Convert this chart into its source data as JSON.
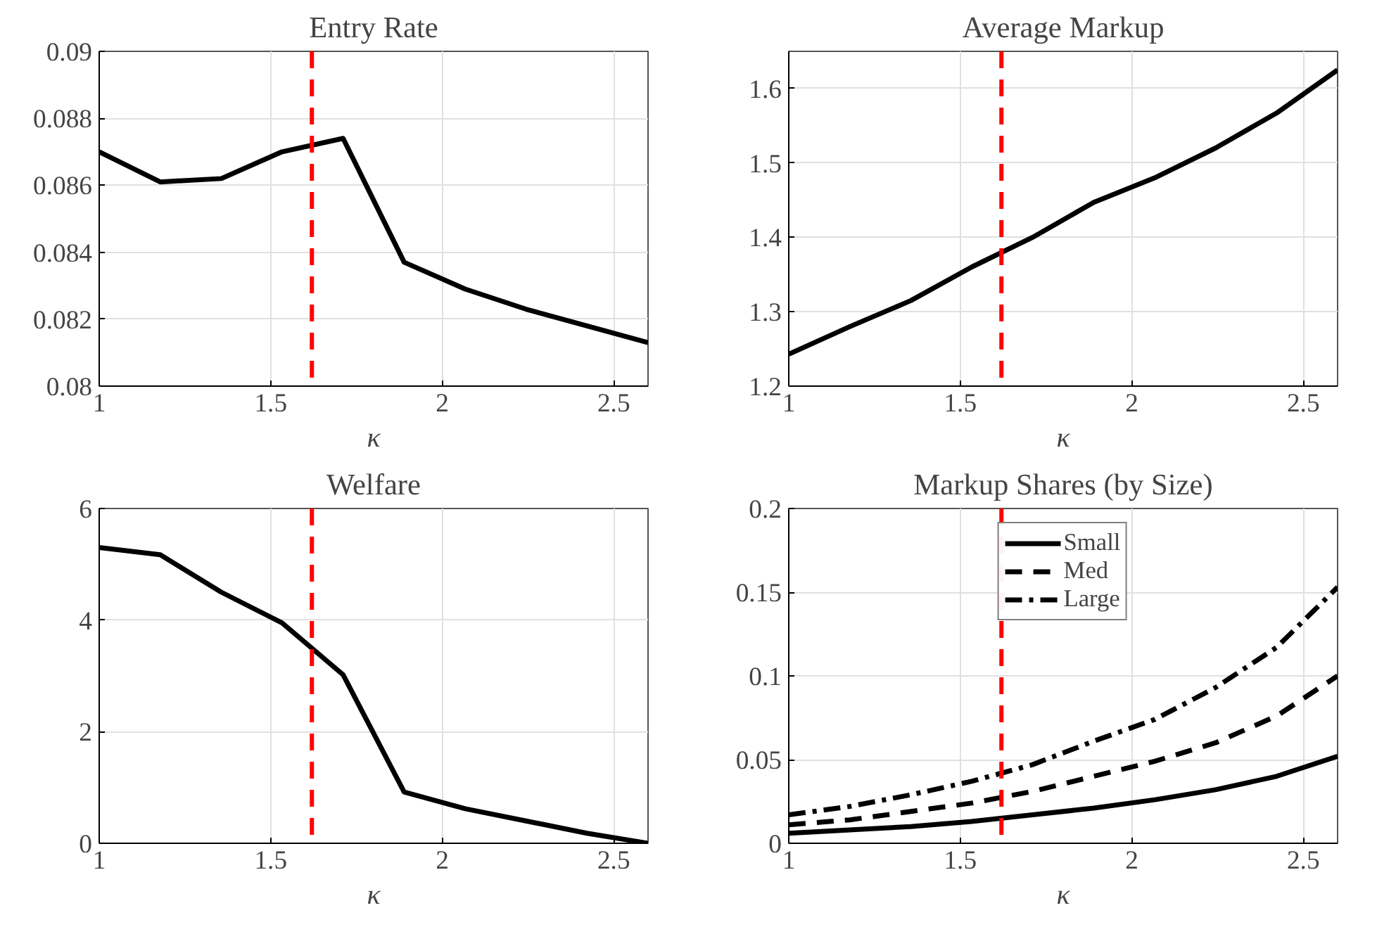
{
  "chart_data": [
    {
      "type": "line",
      "title": "Entry Rate",
      "xlabel": "κ",
      "x": [
        1,
        1.178,
        1.356,
        1.533,
        1.711,
        1.889,
        2.067,
        2.244,
        2.422,
        2.6
      ],
      "xlim": [
        1,
        2.6
      ],
      "xticks": [
        1,
        1.5,
        2,
        2.5
      ],
      "ylim": [
        0.08,
        0.09
      ],
      "yticks": [
        0.08,
        0.082,
        0.084,
        0.086,
        0.088,
        0.09
      ],
      "grid": true,
      "legend": false,
      "series": [
        {
          "color": "#000000",
          "line_style": "solid",
          "values": [
            0.087,
            0.0861,
            0.0862,
            0.087,
            0.0874,
            0.0837,
            0.0829,
            0.0823,
            0.0818,
            0.0813
          ]
        }
      ],
      "ref_lines": [
        {
          "axis": "x",
          "value": 1.62,
          "color": "#ff0000",
          "line_style": "dashed"
        }
      ]
    },
    {
      "type": "line",
      "title": "Average Markup",
      "xlabel": "κ",
      "x": [
        1,
        1.178,
        1.356,
        1.533,
        1.711,
        1.889,
        2.067,
        2.244,
        2.422,
        2.6
      ],
      "xlim": [
        1,
        2.6
      ],
      "xticks": [
        1,
        1.5,
        2,
        2.5
      ],
      "ylim": [
        1.2,
        1.65
      ],
      "yticks": [
        1.2,
        1.3,
        1.4,
        1.5,
        1.6
      ],
      "grid": true,
      "legend": false,
      "series": [
        {
          "color": "#000000",
          "line_style": "solid",
          "values": [
            1.243,
            1.28,
            1.315,
            1.36,
            1.4,
            1.447,
            1.48,
            1.52,
            1.567,
            1.625
          ]
        }
      ],
      "ref_lines": [
        {
          "axis": "x",
          "value": 1.62,
          "color": "#ff0000",
          "line_style": "dashed"
        }
      ]
    },
    {
      "type": "line",
      "title": "Welfare",
      "xlabel": "κ",
      "x": [
        1,
        1.178,
        1.356,
        1.533,
        1.711,
        1.889,
        2.067,
        2.244,
        2.422,
        2.6
      ],
      "xlim": [
        1,
        2.6
      ],
      "xticks": [
        1,
        1.5,
        2,
        2.5
      ],
      "ylim": [
        0,
        6
      ],
      "yticks": [
        0,
        2,
        4,
        6
      ],
      "grid": true,
      "legend": false,
      "series": [
        {
          "color": "#000000",
          "line_style": "solid",
          "values": [
            5.3,
            5.17,
            4.5,
            3.95,
            3.02,
            0.92,
            0.62,
            0.4,
            0.18,
            0.0
          ]
        }
      ],
      "ref_lines": [
        {
          "axis": "x",
          "value": 1.62,
          "color": "#ff0000",
          "line_style": "dashed"
        }
      ]
    },
    {
      "type": "line",
      "title": "Markup Shares (by Size)",
      "xlabel": "κ",
      "x": [
        1,
        1.178,
        1.356,
        1.533,
        1.711,
        1.889,
        2.067,
        2.244,
        2.422,
        2.6
      ],
      "xlim": [
        1,
        2.6
      ],
      "xticks": [
        1,
        1.5,
        2,
        2.5
      ],
      "ylim": [
        0,
        0.2
      ],
      "yticks": [
        0,
        0.05,
        0.1,
        0.15,
        0.2
      ],
      "grid": true,
      "legend": "top",
      "series": [
        {
          "name": "Small",
          "color": "#000000",
          "line_style": "solid",
          "values": [
            0.006,
            0.008,
            0.01,
            0.013,
            0.017,
            0.021,
            0.026,
            0.032,
            0.04,
            0.052
          ]
        },
        {
          "name": "Med",
          "color": "#000000",
          "line_style": "dashed",
          "values": [
            0.011,
            0.014,
            0.019,
            0.024,
            0.031,
            0.04,
            0.049,
            0.06,
            0.076,
            0.1
          ]
        },
        {
          "name": "Large",
          "color": "#000000",
          "line_style": "dashdot",
          "values": [
            0.017,
            0.022,
            0.029,
            0.037,
            0.047,
            0.061,
            0.074,
            0.093,
            0.117,
            0.153
          ]
        }
      ],
      "ref_lines": [
        {
          "axis": "x",
          "value": 1.62,
          "color": "#ff0000",
          "line_style": "dashed"
        }
      ]
    }
  ]
}
